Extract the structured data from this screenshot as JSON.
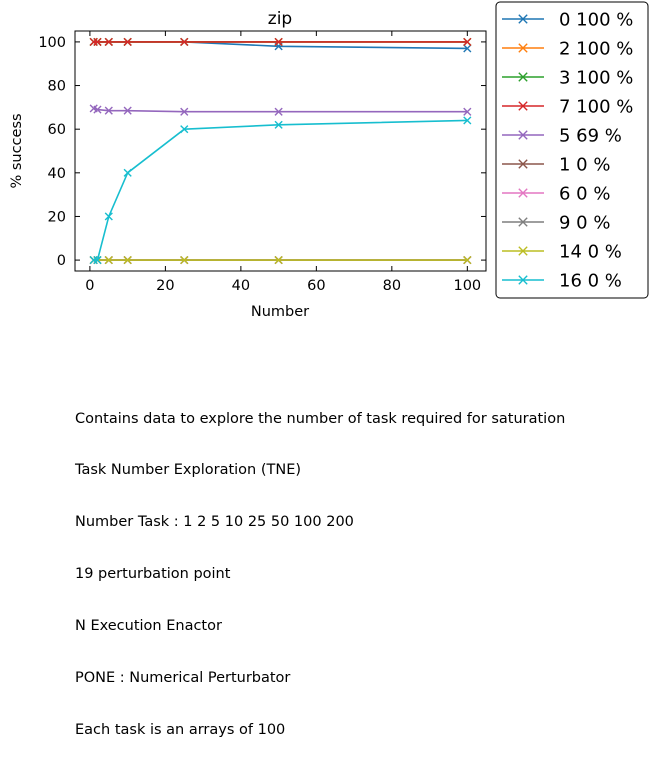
{
  "chart_data": {
    "type": "line",
    "title": "zip",
    "xlabel": "Number",
    "ylabel": "% success",
    "xlim": [
      -3.95,
      104.95
    ],
    "ylim": [
      -5,
      105
    ],
    "xticks": [
      0,
      20,
      40,
      60,
      80,
      100
    ],
    "yticks": [
      0,
      20,
      40,
      60,
      80,
      100
    ],
    "grid": false,
    "legend_placement": "outside-right",
    "series": [
      {
        "name": "0 100 %",
        "color": "#1f77b4",
        "x": [
          1,
          2,
          5,
          10,
          25,
          50,
          100
        ],
        "y": [
          100,
          100,
          100,
          100,
          100,
          98,
          97
        ]
      },
      {
        "name": "2 100 %",
        "color": "#ff7f0e",
        "x": [
          1,
          2,
          5,
          10,
          25,
          50,
          100
        ],
        "y": [
          100,
          100,
          100,
          100,
          100,
          100,
          100
        ]
      },
      {
        "name": "3 100 %",
        "color": "#2ca02c",
        "x": [
          1,
          2,
          5,
          10,
          25,
          50,
          100
        ],
        "y": [
          100,
          100,
          100,
          100,
          100,
          100,
          100
        ]
      },
      {
        "name": "7 100 %",
        "color": "#d62728",
        "x": [
          1,
          2,
          5,
          10,
          25,
          50,
          100
        ],
        "y": [
          100,
          100,
          100,
          100,
          100,
          100,
          100
        ]
      },
      {
        "name": "5 69 %",
        "color": "#9467bd",
        "x": [
          1,
          2,
          5,
          10,
          25,
          50,
          100
        ],
        "y": [
          69.5,
          69,
          68.5,
          68.5,
          68,
          68,
          68
        ]
      },
      {
        "name": "1 0 %",
        "color": "#8c564b",
        "x": [
          1,
          2,
          5,
          10,
          25,
          50,
          100
        ],
        "y": [
          0,
          0,
          0,
          0,
          0,
          0,
          0
        ]
      },
      {
        "name": "6 0 %",
        "color": "#e377c2",
        "x": [
          1,
          2,
          5,
          10,
          25,
          50,
          100
        ],
        "y": [
          0,
          0,
          0,
          0,
          0,
          0,
          0
        ]
      },
      {
        "name": "9 0 %",
        "color": "#7f7f7f",
        "x": [
          1,
          2,
          5,
          10,
          25,
          50,
          100
        ],
        "y": [
          0,
          0,
          0,
          0,
          0,
          0,
          0
        ]
      },
      {
        "name": "14 0 %",
        "color": "#bcbd22",
        "x": [
          1,
          2,
          5,
          10,
          25,
          50,
          100
        ],
        "y": [
          0,
          0,
          0,
          0,
          0,
          0,
          0
        ]
      },
      {
        "name": "16 0 %",
        "color": "#17becf",
        "x": [
          1,
          2,
          5,
          10,
          25,
          50,
          100
        ],
        "y": [
          0,
          0,
          20,
          40,
          60,
          62,
          64
        ]
      }
    ]
  },
  "caption": {
    "lines": [
      "Contains data to explore the number of task required for saturation",
      "Task Number Exploration (TNE)",
      "Number Task : 1 2 5 10 25 50 100 200",
      "19 perturbation point",
      "N Execution Enactor",
      "PONE : Numerical Perturbator",
      "Each task is an arrays of 100"
    ]
  }
}
